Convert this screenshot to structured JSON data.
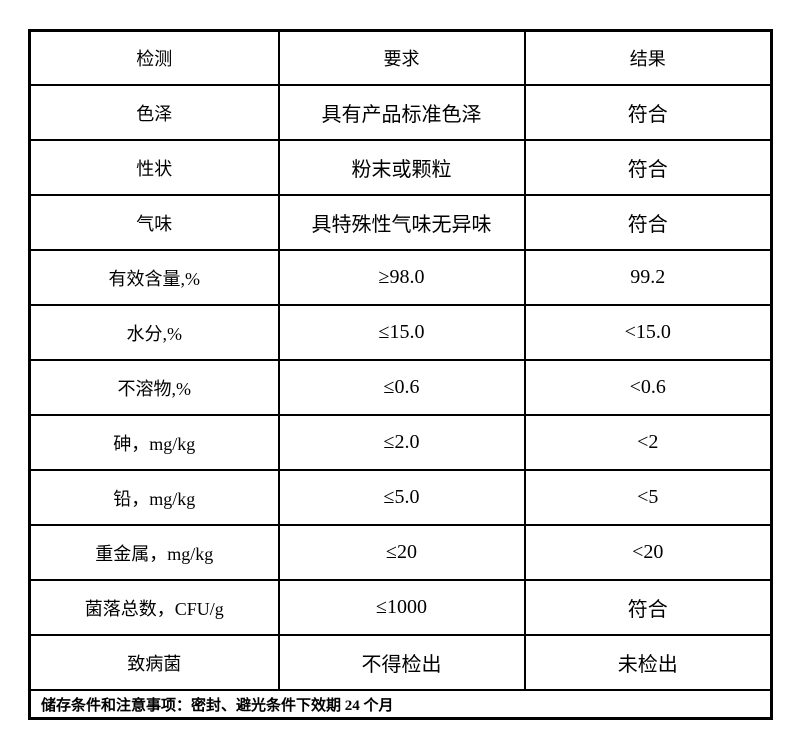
{
  "document": {
    "background_color": "#ffffff",
    "border_color": "#000000",
    "text_color": "#000000"
  },
  "table": {
    "headers": [
      "检测",
      "要求",
      "结果"
    ],
    "rows": [
      {
        "item": "色泽",
        "requirement": "具有产品标准色泽",
        "result": "符合"
      },
      {
        "item": "性状",
        "requirement": "粉末或颗粒",
        "result": "符合"
      },
      {
        "item": "气味",
        "requirement": "具特殊性气味无异味",
        "result": "符合"
      },
      {
        "item": "有效含量,%",
        "requirement": "≥98.0",
        "result": "99.2"
      },
      {
        "item": "水分,%",
        "requirement": "≤15.0",
        "result": "<15.0"
      },
      {
        "item": "不溶物,%",
        "requirement": "≤0.6",
        "result": "<0.6"
      },
      {
        "item": "砷，mg/kg",
        "requirement": "≤2.0",
        "result": "<2"
      },
      {
        "item": "铅，mg/kg",
        "requirement": "≤5.0",
        "result": "<5"
      },
      {
        "item": "重金属，mg/kg",
        "requirement": "≤20",
        "result": "<20"
      },
      {
        "item": "菌落总数，CFU/g",
        "requirement": "≤1000",
        "result": "符合"
      },
      {
        "item": "致病菌",
        "requirement": "不得检出",
        "result": "未检出"
      }
    ],
    "footer_note": "储存条件和注意事项：密封、避光条件下效期 24 个月"
  }
}
